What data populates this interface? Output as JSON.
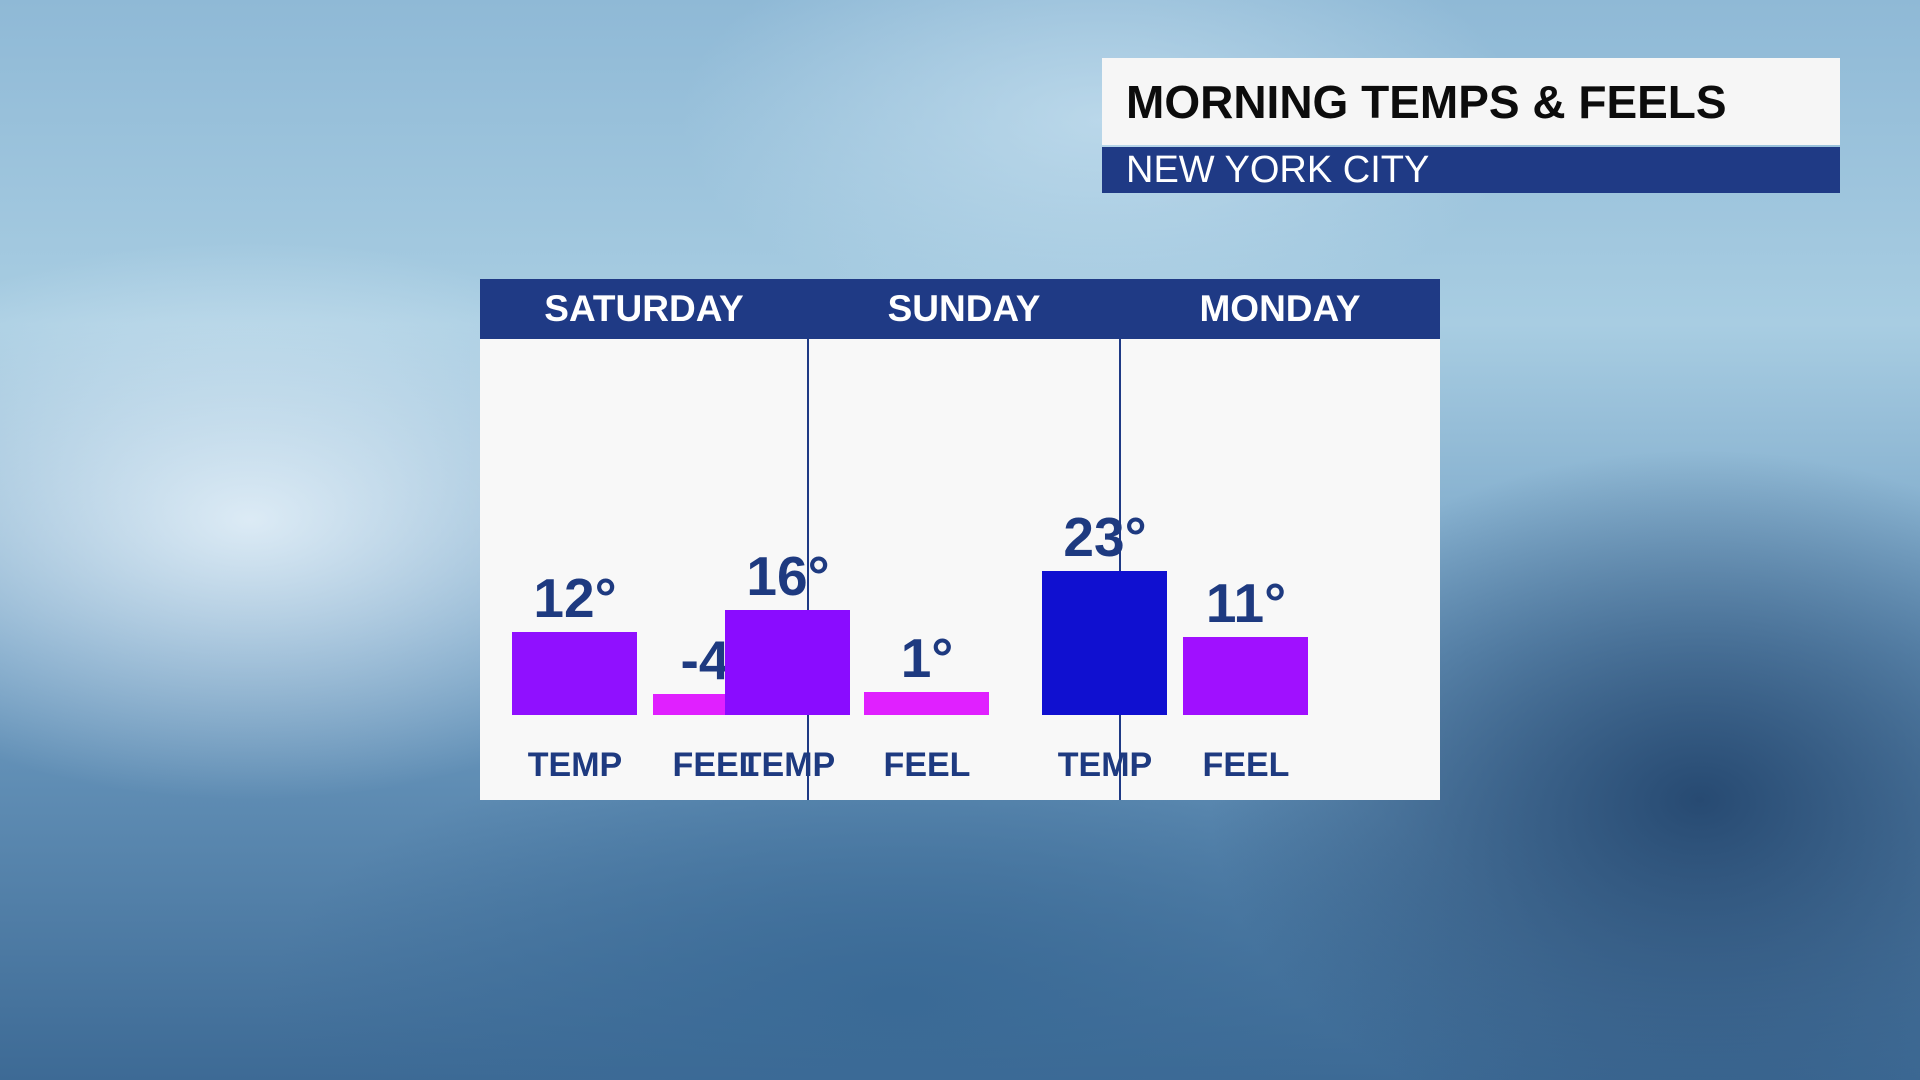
{
  "title": "MORNING TEMPS & FEELS",
  "subtitle": "NEW YORK CITY",
  "chart_data": {
    "type": "bar",
    "categories": [
      "SATURDAY",
      "SUNDAY",
      "MONDAY"
    ],
    "bar_labels": [
      "TEMP",
      "FEEL"
    ],
    "series": [
      {
        "name": "TEMP",
        "values": [
          12,
          16,
          23
        ],
        "labels": [
          "12°",
          "16°",
          "23°"
        ],
        "colors": [
          "#9010ff",
          "#8a0cff",
          "#1010d0"
        ]
      },
      {
        "name": "FEEL",
        "values": [
          -4,
          1,
          11
        ],
        "labels": [
          "-4°",
          "1°",
          "11°"
        ],
        "colors": [
          "#e020ff",
          "#e020ff",
          "#a010ff"
        ]
      }
    ],
    "unit": "°F"
  }
}
